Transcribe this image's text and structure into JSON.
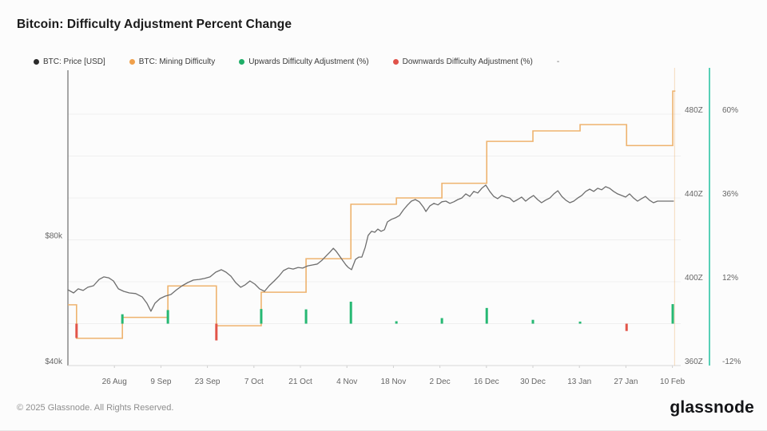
{
  "page": {
    "title": "Bitcoin: Difficulty Adjustment Percent Change",
    "footer_copyright": "© 2025 Glassnode. All Rights Reserved.",
    "brand_logo": "glassnode"
  },
  "legend": {
    "items": [
      {
        "label": "BTC: Price [USD]",
        "color": "#2b2b2b"
      },
      {
        "label": "BTC: Mining Difficulty",
        "color": "#f0a04b"
      },
      {
        "label": "Upwards Difficulty Adjustment (%)",
        "color": "#1fae68"
      },
      {
        "label": "Downwards Difficulty Adjustment (%)",
        "color": "#e0524a"
      }
    ],
    "empty_item": "-"
  },
  "colors": {
    "background": "#fcfcfc",
    "price_line": "#6e6e6e",
    "difficulty_line": "#eeb36e",
    "up_bar": "#26b873",
    "down_bar": "#e25549",
    "teal_rule": "#2ec4a5",
    "gridline": "#efefef",
    "axis_line": "#6d6d6d",
    "baseline": "#d9d9d9",
    "tick_color": "#cfcfcf",
    "tick_label": "#666666",
    "marker_line": "rgba(238,179,110,0.45)"
  },
  "chart_data": {
    "type": "mixed: price line + difficulty step line + adjustment event bars",
    "title": "Bitcoin: Difficulty Adjustment Percent Change",
    "x_axis": {
      "unit": "date",
      "domain_days": [
        0,
        184.5
      ],
      "ticks": [
        {
          "day": 14,
          "label": "26 Aug"
        },
        {
          "day": 28,
          "label": "9 Sep"
        },
        {
          "day": 42,
          "label": "23 Sep"
        },
        {
          "day": 56,
          "label": "7 Oct"
        },
        {
          "day": 70,
          "label": "21 Oct"
        },
        {
          "day": 84,
          "label": "4 Nov"
        },
        {
          "day": 98,
          "label": "18 Nov"
        },
        {
          "day": 112,
          "label": "2 Dec"
        },
        {
          "day": 126,
          "label": "16 Dec"
        },
        {
          "day": 140,
          "label": "30 Dec"
        },
        {
          "day": 154,
          "label": "13 Jan"
        },
        {
          "day": 168,
          "label": "27 Jan"
        },
        {
          "day": 182,
          "label": "10 Feb"
        }
      ]
    },
    "price_axis": {
      "side": "left",
      "unit": "USD thousands",
      "domain": [
        40,
        134.7
      ],
      "ticks": [
        {
          "value": 40,
          "label": "$40k"
        },
        {
          "value": 80,
          "label": "$80k"
        }
      ]
    },
    "difficulty_axis": {
      "side": "right",
      "unit": "Z",
      "domain": [
        360,
        502.1
      ],
      "ticks": [
        {
          "value": 360,
          "label": "360Z"
        },
        {
          "value": 400,
          "label": "400Z"
        },
        {
          "value": 440,
          "label": "440Z"
        },
        {
          "value": 480,
          "label": "480Z"
        }
      ],
      "gridline_values": [
        360,
        380,
        400,
        420,
        440,
        460,
        480
      ]
    },
    "percent_axis": {
      "side": "far-right",
      "unit": "%",
      "domain": [
        -12,
        73.3
      ],
      "ticks": [
        {
          "value": -12,
          "label": "-12%"
        },
        {
          "value": 12,
          "label": "12%"
        },
        {
          "value": 36,
          "label": "36%"
        },
        {
          "value": 60,
          "label": "60%"
        }
      ]
    },
    "series": {
      "price": {
        "name": "BTC: Price [USD]",
        "unit": "USD thousands",
        "points": [
          [
            0,
            64.1
          ],
          [
            1.7,
            63.1
          ],
          [
            3.1,
            64.4
          ],
          [
            4.6,
            63.9
          ],
          [
            6,
            64.9
          ],
          [
            7.7,
            65.4
          ],
          [
            9.4,
            67.4
          ],
          [
            10.8,
            68.2
          ],
          [
            12.3,
            67.9
          ],
          [
            13.7,
            66.9
          ],
          [
            15.2,
            64.4
          ],
          [
            16.8,
            63.6
          ],
          [
            18.5,
            63.1
          ],
          [
            20.4,
            62.9
          ],
          [
            22.4,
            61.8
          ],
          [
            23.8,
            59.8
          ],
          [
            25,
            57.3
          ],
          [
            26.2,
            59.8
          ],
          [
            27.7,
            61.3
          ],
          [
            29.3,
            62.1
          ],
          [
            31,
            62.6
          ],
          [
            32.7,
            64.1
          ],
          [
            34.4,
            65.4
          ],
          [
            36.1,
            66.4
          ],
          [
            37.8,
            67.2
          ],
          [
            39.5,
            67.4
          ],
          [
            41.1,
            67.7
          ],
          [
            42.8,
            68.2
          ],
          [
            44.5,
            69.7
          ],
          [
            46.2,
            70.5
          ],
          [
            47.6,
            69.7
          ],
          [
            49.1,
            68.4
          ],
          [
            50.5,
            66.4
          ],
          [
            52,
            64.9
          ],
          [
            53.4,
            65.7
          ],
          [
            54.8,
            66.9
          ],
          [
            56.3,
            65.9
          ],
          [
            57.7,
            64.4
          ],
          [
            59.2,
            63.6
          ],
          [
            60.6,
            65.4
          ],
          [
            62.1,
            66.9
          ],
          [
            63.5,
            68.4
          ],
          [
            64.9,
            70.2
          ],
          [
            66.4,
            71
          ],
          [
            67.8,
            70.7
          ],
          [
            69.3,
            71.2
          ],
          [
            70.7,
            71
          ],
          [
            72.2,
            71.7
          ],
          [
            73.6,
            72
          ],
          [
            75.1,
            72.3
          ],
          [
            76.5,
            73.5
          ],
          [
            77.9,
            75
          ],
          [
            78.9,
            76.1
          ],
          [
            79.9,
            77.3
          ],
          [
            80.8,
            76.3
          ],
          [
            81.8,
            74.8
          ],
          [
            82.8,
            73.3
          ],
          [
            83.7,
            72
          ],
          [
            84.4,
            71.2
          ],
          [
            85.4,
            70.5
          ],
          [
            86.6,
            73.8
          ],
          [
            87.6,
            74.5
          ],
          [
            88.5,
            74.5
          ],
          [
            89.5,
            77.6
          ],
          [
            90.4,
            81.4
          ],
          [
            91.4,
            82.7
          ],
          [
            92.4,
            82.4
          ],
          [
            93.3,
            83.4
          ],
          [
            94.3,
            82.7
          ],
          [
            95.3,
            83.2
          ],
          [
            96.2,
            85.7
          ],
          [
            97.4,
            86.5
          ],
          [
            98.6,
            87
          ],
          [
            99.8,
            87.7
          ],
          [
            101,
            89.5
          ],
          [
            102.2,
            91
          ],
          [
            103.4,
            92.3
          ],
          [
            104.6,
            92.8
          ],
          [
            105.8,
            92.1
          ],
          [
            107.1,
            90.3
          ],
          [
            107.8,
            89
          ],
          [
            109,
            90.8
          ],
          [
            110.2,
            91.6
          ],
          [
            111.4,
            91.1
          ],
          [
            112.6,
            92.1
          ],
          [
            113.8,
            92.3
          ],
          [
            115,
            91.6
          ],
          [
            116.2,
            92.1
          ],
          [
            117.4,
            92.8
          ],
          [
            118.6,
            93.3
          ],
          [
            119.8,
            94.6
          ],
          [
            121,
            93.8
          ],
          [
            122.2,
            95.4
          ],
          [
            123.4,
            94.9
          ],
          [
            124.6,
            96.4
          ],
          [
            125.8,
            97.4
          ],
          [
            127,
            95.4
          ],
          [
            128.2,
            93.8
          ],
          [
            129.4,
            93.1
          ],
          [
            130.6,
            94.1
          ],
          [
            131.8,
            93.6
          ],
          [
            133,
            93.3
          ],
          [
            134.2,
            92.1
          ],
          [
            135.4,
            92.8
          ],
          [
            136.6,
            93.6
          ],
          [
            137.8,
            92.3
          ],
          [
            139,
            93.3
          ],
          [
            140.2,
            94.1
          ],
          [
            141.4,
            92.8
          ],
          [
            142.6,
            91.8
          ],
          [
            143.8,
            92.6
          ],
          [
            145.1,
            93.3
          ],
          [
            146.3,
            94.6
          ],
          [
            147.5,
            95.6
          ],
          [
            148.7,
            93.8
          ],
          [
            149.9,
            92.6
          ],
          [
            151.1,
            91.8
          ],
          [
            152.3,
            92.3
          ],
          [
            153.5,
            93.3
          ],
          [
            154.7,
            94.1
          ],
          [
            155.9,
            95.4
          ],
          [
            157.1,
            96.1
          ],
          [
            158.3,
            95.4
          ],
          [
            159.5,
            96.4
          ],
          [
            160.7,
            95.9
          ],
          [
            161.9,
            96.9
          ],
          [
            163.1,
            96.4
          ],
          [
            164.3,
            95.4
          ],
          [
            165.5,
            94.6
          ],
          [
            166.7,
            94.1
          ],
          [
            167.9,
            93.6
          ],
          [
            169.1,
            94.6
          ],
          [
            170.3,
            93.3
          ],
          [
            171.5,
            92.3
          ],
          [
            172.7,
            93.1
          ],
          [
            173.9,
            93.8
          ],
          [
            175.1,
            92.6
          ],
          [
            176.3,
            91.8
          ],
          [
            177.5,
            92.3
          ],
          [
            178.7,
            92.3
          ],
          [
            179.9,
            92.3
          ],
          [
            181.1,
            92.3
          ],
          [
            182.3,
            92.3
          ]
        ]
      },
      "difficulty": {
        "name": "BTC: Mining Difficulty",
        "unit": "Z",
        "steps": [
          [
            0,
            389
          ],
          [
            2.6,
            373
          ],
          [
            16.4,
            383
          ],
          [
            30.1,
            398
          ],
          [
            44.7,
            379
          ],
          [
            58.2,
            395
          ],
          [
            71.7,
            411
          ],
          [
            85.2,
            437
          ],
          [
            98.9,
            440
          ],
          [
            112.6,
            447
          ],
          [
            126.1,
            467
          ],
          [
            140,
            472
          ],
          [
            154.2,
            475
          ],
          [
            168.2,
            465
          ],
          [
            182.1,
            491
          ]
        ],
        "end_day": 182.9,
        "last_value_marker_day": 182.9
      },
      "adjustments": {
        "up_name": "Upwards Difficulty Adjustment (%)",
        "down_name": "Downwards Difficulty Adjustment (%)",
        "unit": "%",
        "events": [
          [
            2.6,
            -4.1
          ],
          [
            16.4,
            2.7
          ],
          [
            30.1,
            3.9
          ],
          [
            44.7,
            -4.8
          ],
          [
            58.2,
            4.2
          ],
          [
            71.7,
            4.1
          ],
          [
            85.2,
            6.3
          ],
          [
            98.9,
            0.7
          ],
          [
            112.6,
            1.6
          ],
          [
            126.1,
            4.5
          ],
          [
            140,
            1.1
          ],
          [
            154.2,
            0.6
          ],
          [
            168.2,
            -2.1
          ],
          [
            182.1,
            5.6
          ]
        ]
      }
    },
    "layout_hints": {
      "grid": "horizontal only",
      "legend_position": "top",
      "right_rule": "vertical teal accent line at right edge of panel"
    }
  }
}
